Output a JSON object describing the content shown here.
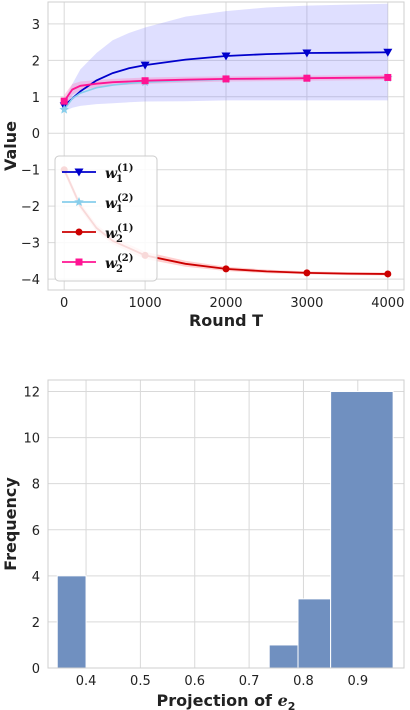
{
  "chart_data": [
    {
      "type": "line",
      "xlabel": "Round T",
      "ylabel": "Value",
      "xlim": [
        -200,
        4200
      ],
      "ylim": [
        -4.3,
        3.6
      ],
      "xticks": [
        0,
        1000,
        2000,
        3000,
        4000
      ],
      "yticks": [
        -4,
        -3,
        -2,
        -1,
        0,
        1,
        2,
        3
      ],
      "grid": true,
      "legend_position": "lower-left",
      "series": [
        {
          "name": "w_1^(1)",
          "legend": {
            "base": "w",
            "sub": "1",
            "sup": "(1)"
          },
          "color": "#0000cc",
          "marker": "triangle-down",
          "x": [
            0,
            100,
            200,
            400,
            600,
            800,
            1000,
            1500,
            2000,
            2500,
            3000,
            3500,
            4000
          ],
          "y": [
            0.75,
            0.95,
            1.15,
            1.45,
            1.65,
            1.78,
            1.87,
            2.02,
            2.12,
            2.17,
            2.2,
            2.21,
            2.22
          ],
          "markers_at": [
            0,
            1000,
            2000,
            3000,
            4000
          ],
          "band_upper": [
            0.9,
            1.35,
            1.75,
            2.2,
            2.55,
            2.75,
            2.9,
            3.2,
            3.35,
            3.45,
            3.5,
            3.53,
            3.55
          ],
          "band_lower": [
            0.6,
            0.7,
            0.75,
            0.8,
            0.82,
            0.85,
            0.87,
            0.88,
            0.9,
            0.9,
            0.9,
            0.9,
            0.9
          ]
        },
        {
          "name": "w_1^(2)",
          "legend": {
            "base": "w",
            "sub": "1",
            "sup": "(2)"
          },
          "color": "#87ceeb",
          "marker": "star",
          "x": [
            0,
            100,
            200,
            400,
            600,
            800,
            1000,
            1500,
            2000,
            2500,
            3000,
            3500,
            4000
          ],
          "y": [
            0.65,
            0.95,
            1.1,
            1.25,
            1.32,
            1.37,
            1.4,
            1.45,
            1.48,
            1.5,
            1.51,
            1.52,
            1.52
          ],
          "markers_at": [
            0,
            1000,
            2000,
            3000,
            4000
          ]
        },
        {
          "name": "w_2^(1)",
          "legend": {
            "base": "w",
            "sub": "2",
            "sup": "(1)"
          },
          "color": "#cc0000",
          "marker": "circle",
          "x": [
            0,
            100,
            200,
            400,
            600,
            800,
            1000,
            1500,
            2000,
            2500,
            3000,
            3500,
            4000
          ],
          "y": [
            -1.0,
            -1.5,
            -2.0,
            -2.6,
            -2.95,
            -3.15,
            -3.35,
            -3.58,
            -3.72,
            -3.79,
            -3.83,
            -3.85,
            -3.86
          ],
          "markers_at": [
            0,
            1000,
            2000,
            3000,
            4000
          ],
          "band_upper": [
            -0.9,
            -1.4,
            -1.9,
            -2.5,
            -2.85,
            -3.05,
            -3.25,
            -3.5,
            -3.66,
            -3.74,
            -3.79,
            -3.81,
            -3.82
          ],
          "band_lower": [
            -1.1,
            -1.6,
            -2.1,
            -2.7,
            -3.05,
            -3.25,
            -3.45,
            -3.66,
            -3.78,
            -3.84,
            -3.87,
            -3.89,
            -3.9
          ]
        },
        {
          "name": "w_2^(2)",
          "legend": {
            "base": "w",
            "sub": "2",
            "sup": "(2)"
          },
          "color": "#ff1493",
          "marker": "square",
          "x": [
            0,
            100,
            200,
            400,
            600,
            800,
            1000,
            1500,
            2000,
            2500,
            3000,
            3500,
            4000
          ],
          "y": [
            0.88,
            1.2,
            1.3,
            1.36,
            1.4,
            1.42,
            1.44,
            1.47,
            1.49,
            1.5,
            1.51,
            1.52,
            1.53
          ],
          "markers_at": [
            0,
            1000,
            2000,
            3000,
            4000
          ],
          "band_upper": [
            1.05,
            1.35,
            1.42,
            1.46,
            1.49,
            1.51,
            1.53,
            1.55,
            1.56,
            1.57,
            1.58,
            1.59,
            1.6
          ],
          "band_lower": [
            0.7,
            1.05,
            1.18,
            1.26,
            1.31,
            1.33,
            1.35,
            1.39,
            1.42,
            1.43,
            1.44,
            1.45,
            1.46
          ]
        }
      ]
    },
    {
      "type": "bar",
      "subtype": "histogram",
      "xlabel": "Projection of e_2",
      "xlabel_parts": {
        "main": "Projection of ",
        "var": "e",
        "sub": "2"
      },
      "ylabel": "Frequency",
      "xlim": [
        0.33,
        0.985
      ],
      "ylim": [
        0,
        12.5
      ],
      "xticks": [
        0.4,
        0.5,
        0.6,
        0.7,
        0.8,
        0.9
      ],
      "xtick_labels": [
        "0.4",
        "0.5",
        "0.6",
        "0.7",
        "0.8",
        "0.9"
      ],
      "yticks": [
        0,
        2,
        4,
        6,
        8,
        10,
        12
      ],
      "grid": true,
      "color": "#7090c0",
      "bins": [
        {
          "x0": 0.347,
          "x1": 0.4,
          "count": 4
        },
        {
          "x0": 0.4,
          "x1": 0.46,
          "count": 0
        },
        {
          "x0": 0.46,
          "x1": 0.52,
          "count": 0
        },
        {
          "x0": 0.52,
          "x1": 0.58,
          "count": 0
        },
        {
          "x0": 0.58,
          "x1": 0.64,
          "count": 0
        },
        {
          "x0": 0.64,
          "x1": 0.695,
          "count": 0
        },
        {
          "x0": 0.737,
          "x1": 0.79,
          "count": 1
        },
        {
          "x0": 0.79,
          "x1": 0.85,
          "count": 3
        },
        {
          "x0": 0.85,
          "x1": 0.965,
          "count": 12
        }
      ]
    }
  ]
}
